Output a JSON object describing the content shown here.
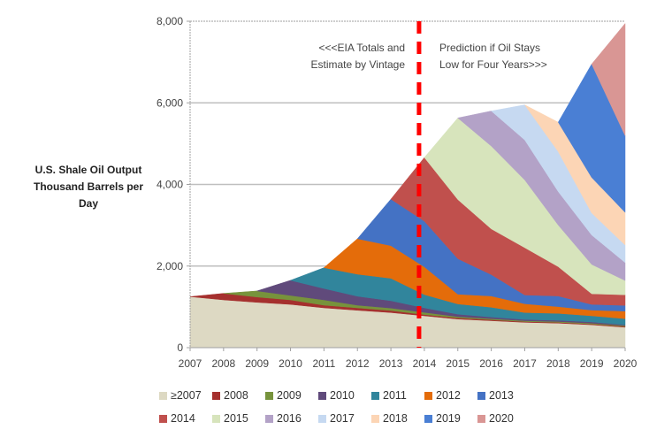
{
  "chart_data": {
    "type": "area",
    "stacked": true,
    "title": "",
    "xlabel": "",
    "ylabel": "U.S. Shale Oil Output Thousand Barrels per Day",
    "ylabel_lines": [
      "U.S. Shale Oil Output",
      "Thousand Barrels per",
      "Day"
    ],
    "ylim": [
      0,
      8000
    ],
    "yticks": [
      0,
      2000,
      4000,
      6000,
      8000
    ],
    "ytick_labels": [
      "0",
      "2,000",
      "4,000",
      "6,000",
      "8,000"
    ],
    "grid": "horizontal",
    "x": [
      "2007",
      "2008",
      "2009",
      "2010",
      "2011",
      "2012",
      "2013",
      "2014",
      "2015",
      "2016",
      "2017",
      "2018",
      "2019",
      "2020"
    ],
    "series": [
      {
        "name": "≥2007",
        "color": "#ddd9c3",
        "values": [
          1250,
          1170,
          1110,
          1060,
          975,
          915,
          860,
          780,
          700,
          660,
          620,
          600,
          560,
          500
        ]
      },
      {
        "name": "2008",
        "color": "#a5302e",
        "values": [
          0,
          160,
          130,
          110,
          65,
          60,
          50,
          30,
          30,
          25,
          20,
          20,
          20,
          20
        ]
      },
      {
        "name": "2009",
        "color": "#77933c",
        "values": [
          0,
          0,
          150,
          110,
          130,
          65,
          60,
          55,
          30,
          25,
          20,
          20,
          20,
          20
        ]
      },
      {
        "name": "2010",
        "color": "#604a7b",
        "values": [
          0,
          0,
          0,
          370,
          280,
          220,
          180,
          110,
          60,
          40,
          30,
          30,
          30,
          20
        ]
      },
      {
        "name": "2011",
        "color": "#31859c",
        "values": [
          0,
          0,
          0,
          0,
          510,
          540,
          550,
          325,
          250,
          240,
          170,
          170,
          150,
          150
        ]
      },
      {
        "name": "2012",
        "color": "#e46c0a",
        "values": [
          0,
          0,
          0,
          0,
          0,
          870,
          800,
          680,
          240,
          275,
          215,
          165,
          140,
          185
        ]
      },
      {
        "name": "2013",
        "color": "#4472c4",
        "values": [
          0,
          0,
          0,
          0,
          0,
          0,
          1140,
          1120,
          870,
          525,
          215,
          260,
          140,
          140
        ]
      },
      {
        "name": "2014",
        "color": "#c0504d",
        "values": [
          0,
          0,
          0,
          0,
          0,
          0,
          0,
          1560,
          1450,
          1120,
          1160,
          720,
          260,
          260
        ]
      },
      {
        "name": "2015",
        "color": "#d7e4bc",
        "values": [
          0,
          0,
          0,
          0,
          0,
          0,
          0,
          0,
          2000,
          2030,
          1660,
          1020,
          720,
          350
        ]
      },
      {
        "name": "2016",
        "color": "#b3a2c7",
        "values": [
          0,
          0,
          0,
          0,
          0,
          0,
          0,
          0,
          0,
          860,
          980,
          820,
          720,
          440
        ]
      },
      {
        "name": "2017",
        "color": "#c6d9f1",
        "values": [
          0,
          0,
          0,
          0,
          0,
          0,
          0,
          0,
          0,
          0,
          860,
          980,
          540,
          430
        ]
      },
      {
        "name": "2018",
        "color": "#fcd5b5",
        "values": [
          0,
          0,
          0,
          0,
          0,
          0,
          0,
          0,
          0,
          0,
          0,
          720,
          870,
          800
        ]
      },
      {
        "name": "2019",
        "color": "#4a7fd4",
        "values": [
          0,
          0,
          0,
          0,
          0,
          0,
          0,
          0,
          0,
          0,
          0,
          0,
          2780,
          1880
        ]
      },
      {
        "name": "2020",
        "color": "#d99694",
        "values": [
          0,
          0,
          0,
          0,
          0,
          0,
          0,
          0,
          0,
          0,
          0,
          0,
          0,
          2750
        ]
      }
    ],
    "divider": {
      "x": "2014",
      "style": "dashed",
      "color": "#ff0000"
    },
    "annotations": [
      {
        "lines": [
          "<<<EIA Totals and",
          "Estimate by Vintage"
        ],
        "side": "left-of-divider"
      },
      {
        "lines": [
          "Prediction if Oil Stays",
          "Low for Four Years>>>"
        ],
        "side": "right-of-divider"
      }
    ],
    "legend": {
      "placement": "bottom",
      "rows": [
        [
          "≥2007",
          "2008",
          "2009",
          "2010",
          "2011",
          "2012",
          "2013"
        ],
        [
          "2014",
          "2015",
          "2016",
          "2017",
          "2018",
          "2019",
          "2020"
        ]
      ]
    }
  }
}
